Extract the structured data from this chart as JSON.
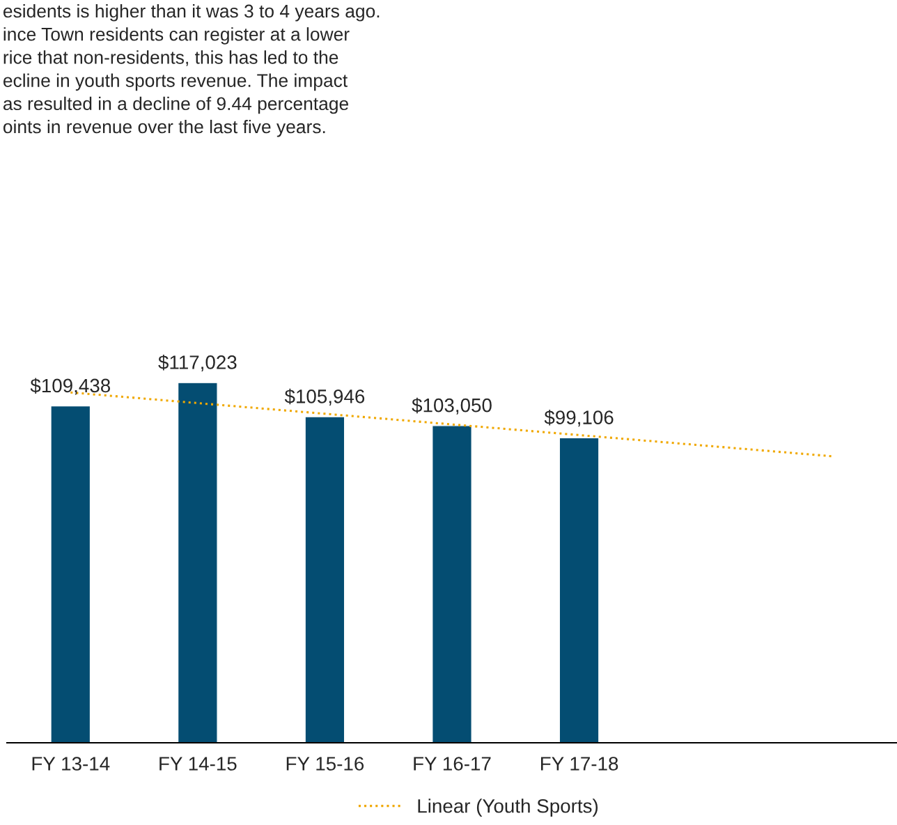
{
  "chart_data": {
    "type": "bar",
    "categories": [
      "FY 13-14",
      "FY 14-15",
      "FY 15-16",
      "FY 16-17",
      "FY 17-18",
      null,
      null
    ],
    "series": [
      {
        "color": "#044d72",
        "values": [
          109438,
          117023,
          105946,
          103050,
          99106,
          null,
          null
        ],
        "value_labels": [
          "$109,438",
          "$117,023",
          "$105,946",
          "$103,050",
          "$99,106",
          null,
          null
        ]
      },
      {
        "type": "line",
        "name": "Linear (Youth Sports)",
        "color": "#f0a800",
        "line_style": "dotted",
        "values": [
          113840,
          110377,
          106913,
          103449,
          99985,
          96521,
          93058
        ]
      }
    ],
    "tick_labels": "x",
    "grid": false,
    "legend": "bottom",
    "annotations": [
      "esidents is higher than it was 3 to 4 years ago.\nince Town residents can register at a lower\nrice that non-residents, this has led to the\necline in youth sports revenue. The impact\nas resulted in a decline of 9.44 percentage\noints in revenue over the last five years."
    ]
  }
}
